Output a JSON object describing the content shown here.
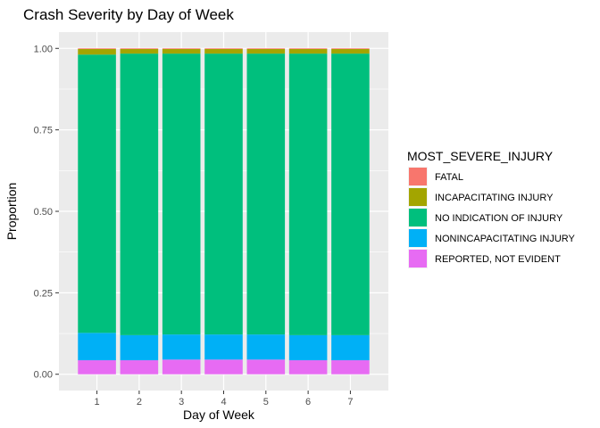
{
  "chart_data": {
    "type": "bar",
    "stacked": true,
    "title": "Crash Severity by Day of Week",
    "xlabel": "Day of Week",
    "ylabel": "Proportion",
    "ylim": [
      0,
      1
    ],
    "yticks": [
      "0.00",
      "0.25",
      "0.50",
      "0.75",
      "1.00"
    ],
    "categories": [
      "1",
      "2",
      "3",
      "4",
      "5",
      "6",
      "7"
    ],
    "legend_title": "MOST_SEVERE_INJURY",
    "legend_position": "right",
    "grid": true,
    "series": [
      {
        "name": "REPORTED, NOT EVIDENT",
        "color": "#E76BF3",
        "values": [
          0.043,
          0.043,
          0.045,
          0.045,
          0.045,
          0.043,
          0.043
        ]
      },
      {
        "name": "NONINCAPACITATING INJURY",
        "color": "#00B0F6",
        "values": [
          0.084,
          0.077,
          0.077,
          0.077,
          0.077,
          0.077,
          0.077
        ]
      },
      {
        "name": "NO INDICATION OF INJURY",
        "color": "#00BF7D",
        "values": [
          0.854,
          0.864,
          0.862,
          0.862,
          0.862,
          0.864,
          0.864
        ]
      },
      {
        "name": "INCAPACITATING INJURY",
        "color": "#A3A500",
        "values": [
          0.017,
          0.014,
          0.014,
          0.014,
          0.014,
          0.014,
          0.014
        ]
      },
      {
        "name": "FATAL",
        "color": "#F8766D",
        "values": [
          0.002,
          0.002,
          0.002,
          0.002,
          0.002,
          0.002,
          0.002
        ]
      }
    ],
    "legend_order": [
      "FATAL",
      "INCAPACITATING INJURY",
      "NO INDICATION OF INJURY",
      "NONINCAPACITATING INJURY",
      "REPORTED, NOT EVIDENT"
    ]
  }
}
